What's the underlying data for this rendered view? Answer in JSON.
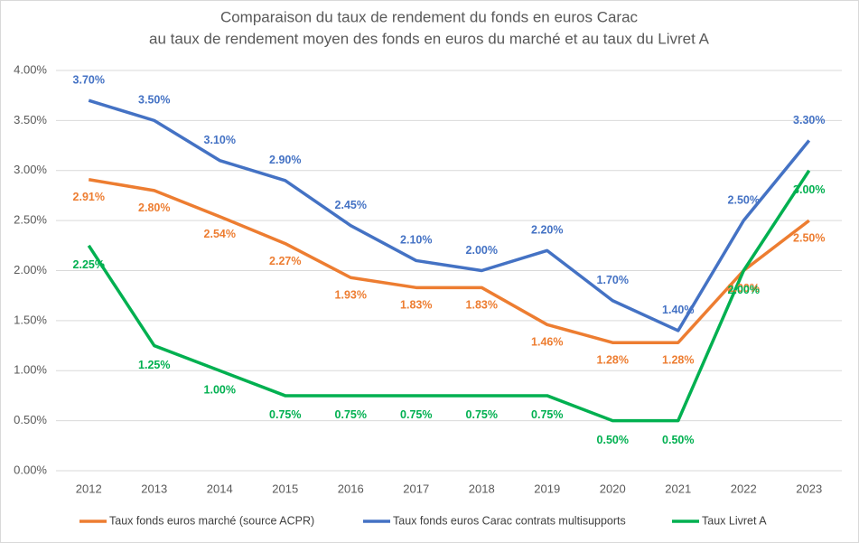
{
  "chart_data": {
    "type": "line",
    "title": [
      "Comparaison du taux de rendement du fonds en euros Carac",
      "au taux de rendement moyen des fonds en euros du marché et au taux du Livret A"
    ],
    "categories": [
      "2012",
      "2013",
      "2014",
      "2015",
      "2016",
      "2017",
      "2018",
      "2019",
      "2020",
      "2021",
      "2022",
      "2023"
    ],
    "series": [
      {
        "name": "Taux fonds euros marché (source ACPR)",
        "color": "#ED7D31",
        "values": [
          2.91,
          2.8,
          2.54,
          2.27,
          1.93,
          1.83,
          1.83,
          1.46,
          1.28,
          1.28,
          2.0,
          2.5
        ],
        "value_labels": [
          "2.91%",
          "2.80%",
          "2.54%",
          "2.27%",
          "1.93%",
          "1.83%",
          "1.83%",
          "1.46%",
          "1.28%",
          "1.28%",
          "2.00%",
          "2.50%"
        ]
      },
      {
        "name": "Taux fonds euros Carac contrats multisupports",
        "color": "#4472C4",
        "values": [
          3.7,
          3.5,
          3.1,
          2.9,
          2.45,
          2.1,
          2.0,
          2.2,
          1.7,
          1.4,
          2.5,
          3.3
        ],
        "value_labels": [
          "3.70%",
          "3.50%",
          "3.10%",
          "2.90%",
          "2.45%",
          "2.10%",
          "2.00%",
          "2.20%",
          "1.70%",
          "1.40%",
          "2.50%",
          "3.30%"
        ]
      },
      {
        "name": "Taux Livret A",
        "color": "#00B050",
        "values": [
          2.25,
          1.25,
          1.0,
          0.75,
          0.75,
          0.75,
          0.75,
          0.75,
          0.5,
          0.5,
          2.0,
          3.0
        ],
        "value_labels": [
          "2.25%",
          "1.25%",
          "1.00%",
          "0.75%",
          "0.75%",
          "0.75%",
          "0.75%",
          "0.75%",
          "0.50%",
          "0.50%",
          "2.00%",
          "3.00%"
        ]
      }
    ],
    "ylim": [
      0,
      4
    ],
    "yticks": [
      {
        "value": 0,
        "label": "0.00%"
      },
      {
        "value": 0.5,
        "label": "0.50%"
      },
      {
        "value": 1,
        "label": "1.00%"
      },
      {
        "value": 1.5,
        "label": "1.50%"
      },
      {
        "value": 2,
        "label": "2.00%"
      },
      {
        "value": 2.5,
        "label": "2.50%"
      },
      {
        "value": 3,
        "label": "3.00%"
      },
      {
        "value": 3.5,
        "label": "3.50%"
      },
      {
        "value": 4,
        "label": "4.00%"
      }
    ],
    "grid": true,
    "legend": "bottom"
  }
}
